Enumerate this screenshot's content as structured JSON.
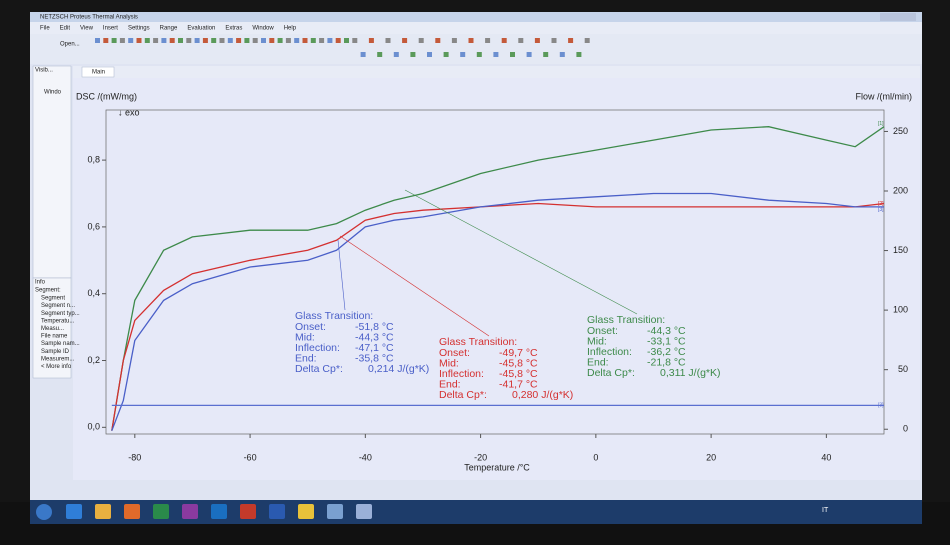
{
  "window": {
    "title": "NETZSCH Proteus Thermal Analysis",
    "menu": [
      "File",
      "Edit",
      "View",
      "Insert",
      "Settings",
      "Range",
      "Evaluation",
      "Extras",
      "Window",
      "Help"
    ],
    "open_button": "Open...",
    "tab": "Main",
    "side_top_title": "Visib...",
    "side_tree": [
      "Windo",
      "",
      "",
      ""
    ],
    "info_title": "Info",
    "segment_label": "Segment:",
    "info_items": [
      "Segment",
      "Segment n...",
      "Segment typ...",
      "Temperatu...",
      "Measu...",
      "File name",
      "Sample nam...",
      "Sample ID",
      "Measurem...",
      "< More info"
    ],
    "tray_language": "IT"
  },
  "chart_data": {
    "type": "line",
    "y_label": "DSC /(mW/mg)",
    "y_note": "↓ exo",
    "y2_label": "Flow /(ml/min)",
    "x_label": "Temperature /°C",
    "xlim": [
      -85,
      50
    ],
    "xticks": [
      -80,
      -60,
      -40,
      -20,
      0,
      20,
      40
    ],
    "ylim": [
      -0.02,
      0.95
    ],
    "yticks": [
      {
        "value": 0,
        "label": "0,0"
      },
      {
        "value": 0.2,
        "label": "0,2"
      },
      {
        "value": 0.4,
        "label": "0,4"
      },
      {
        "value": 0.6,
        "label": "0,6"
      },
      {
        "value": 0.8,
        "label": "0,8"
      }
    ],
    "y2lim": [
      -4,
      268
    ],
    "y2ticks": [
      0,
      50,
      100,
      150,
      200,
      250
    ],
    "x": [
      -84,
      -82,
      -80,
      -75,
      -70,
      -60,
      -50,
      -45,
      -40,
      -35,
      -30,
      -20,
      -10,
      0,
      10,
      20,
      30,
      40,
      45,
      50
    ],
    "series": [
      {
        "color": "#3d8a4a",
        "end_label": "[1]",
        "values": [
          -0.01,
          0.2,
          0.38,
          0.53,
          0.57,
          0.59,
          0.59,
          0.61,
          0.65,
          0.68,
          0.7,
          0.76,
          0.8,
          0.83,
          0.86,
          0.89,
          0.9,
          0.86,
          0.84,
          0.9
        ]
      },
      {
        "color": "#d43030",
        "end_label": "[2]",
        "values": [
          -0.01,
          0.2,
          0.32,
          0.41,
          0.46,
          0.5,
          0.53,
          0.56,
          0.62,
          0.64,
          0.65,
          0.66,
          0.67,
          0.66,
          0.66,
          0.66,
          0.66,
          0.66,
          0.66,
          0.67
        ]
      },
      {
        "color": "#4a5fc8",
        "end_label": "[3]",
        "values": [
          -0.01,
          0.08,
          0.26,
          0.38,
          0.43,
          0.48,
          0.5,
          0.53,
          0.6,
          0.62,
          0.63,
          0.66,
          0.68,
          0.69,
          0.7,
          0.7,
          0.68,
          0.67,
          0.66,
          0.66
        ]
      },
      {
        "color": "#5a6fd0",
        "axis": "y2",
        "end_label": "[3]",
        "values": [
          20,
          20,
          20,
          20,
          20,
          20,
          20,
          20,
          20,
          20,
          20,
          20,
          20,
          20,
          20,
          20,
          20,
          20,
          20,
          20
        ]
      }
    ],
    "annotations": [
      {
        "color": "#4a5fc8",
        "title": "Glass Transition:",
        "rows": [
          [
            "Onset:",
            "-51,8 °C"
          ],
          [
            "Mid:",
            "-44,3 °C"
          ],
          [
            "Inflection:",
            "-47,1 °C"
          ],
          [
            "End:",
            "-35,8 °C"
          ],
          [
            "Delta Cp*:",
            "0,214 J/(g*K)"
          ]
        ]
      },
      {
        "color": "#d43030",
        "title": "Glass Transition:",
        "rows": [
          [
            "Onset:",
            "-49,7 °C"
          ],
          [
            "Mid:",
            "-45,8 °C"
          ],
          [
            "Inflection:",
            "-45,8 °C"
          ],
          [
            "End:",
            "-41,7 °C"
          ],
          [
            "Delta Cp*:",
            "0,280 J/(g*K)"
          ]
        ]
      },
      {
        "color": "#3d8a4a",
        "title": "Glass Transition:",
        "rows": [
          [
            "Onset:",
            "-44,3 °C"
          ],
          [
            "Mid:",
            "-33,1 °C"
          ],
          [
            "Inflection:",
            "-36,2 °C"
          ],
          [
            "End:",
            "-21,8 °C"
          ],
          [
            "Delta Cp*:",
            "0,311 J/(g*K)"
          ]
        ]
      }
    ]
  }
}
